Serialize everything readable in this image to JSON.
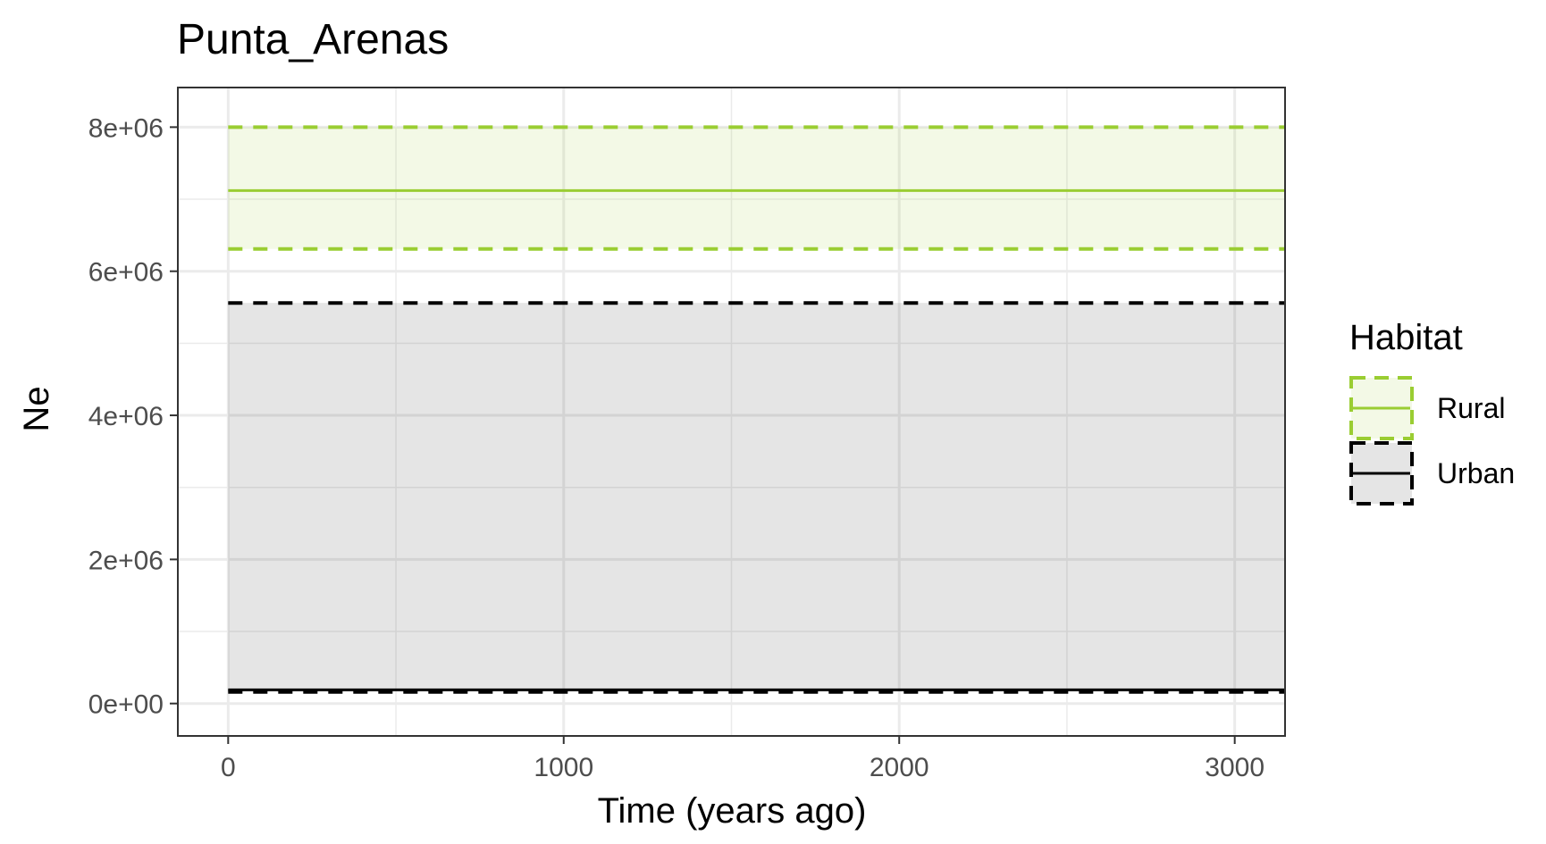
{
  "chart_data": {
    "type": "line",
    "title": "Punta_Arenas",
    "xlabel": "Time (years ago)",
    "ylabel": "Ne",
    "xlim": [
      -150,
      3150
    ],
    "ylim": [
      -450000,
      8550000
    ],
    "x_ticks": [
      0,
      1000,
      2000,
      3000
    ],
    "x_tick_labels": [
      "0",
      "1000",
      "2000",
      "3000"
    ],
    "x_minor_ticks": [
      500,
      1500,
      2500
    ],
    "y_ticks": [
      0,
      2000000,
      4000000,
      6000000,
      8000000
    ],
    "y_tick_labels": [
      "0e+00",
      "2e+06",
      "4e+06",
      "6e+06",
      "8e+06"
    ],
    "y_minor_ticks": [
      1000000,
      3000000,
      5000000,
      7000000
    ],
    "grid": true,
    "legend": {
      "title": "Habitat",
      "position": "right",
      "entries": [
        "Rural",
        "Urban"
      ]
    },
    "series": [
      {
        "name": "Rural",
        "color": "#9ACD32",
        "x": [
          0,
          3150
        ],
        "median": [
          7120000,
          7120000
        ],
        "lower": [
          6310000,
          6310000
        ],
        "upper": [
          8000000,
          8000000
        ]
      },
      {
        "name": "Urban",
        "color": "#000000",
        "x": [
          0,
          3150
        ],
        "median": [
          190000,
          190000
        ],
        "lower": [
          160000,
          160000
        ],
        "upper": [
          5560000,
          5560000
        ]
      }
    ]
  }
}
